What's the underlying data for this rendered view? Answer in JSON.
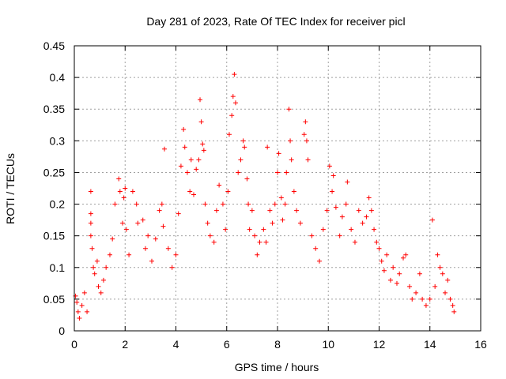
{
  "chart_data": {
    "type": "scatter",
    "title": "Day 281 of 2023, Rate Of TEC Index for receiver picl",
    "xlabel": "GPS time / hours",
    "ylabel": "ROTI / TECUs",
    "xlim": [
      0,
      16
    ],
    "ylim": [
      0,
      0.45
    ],
    "x_ticks": [
      "0",
      "2",
      "4",
      "6",
      "8",
      "10",
      "12",
      "14",
      "16"
    ],
    "y_ticks": [
      "0",
      "0.05",
      "0.1",
      "0.15",
      "0.2",
      "0.25",
      "0.3",
      "0.35",
      "0.4",
      "0.45"
    ],
    "grid": true,
    "marker": "plus",
    "series_color": "#ff0000",
    "points": [
      [
        0.05,
        0.055
      ],
      [
        0.1,
        0.045
      ],
      [
        0.15,
        0.03
      ],
      [
        0.2,
        0.02
      ],
      [
        0.3,
        0.04
      ],
      [
        0.4,
        0.06
      ],
      [
        0.5,
        0.03
      ],
      [
        0.65,
        0.22
      ],
      [
        0.65,
        0.185
      ],
      [
        0.65,
        0.17
      ],
      [
        0.65,
        0.15
      ],
      [
        0.7,
        0.13
      ],
      [
        0.75,
        0.1
      ],
      [
        0.8,
        0.09
      ],
      [
        0.9,
        0.11
      ],
      [
        0.95,
        0.07
      ],
      [
        1.05,
        0.06
      ],
      [
        1.15,
        0.08
      ],
      [
        1.25,
        0.1
      ],
      [
        1.4,
        0.12
      ],
      [
        1.5,
        0.145
      ],
      [
        1.6,
        0.2
      ],
      [
        1.75,
        0.24
      ],
      [
        1.8,
        0.22
      ],
      [
        1.9,
        0.17
      ],
      [
        1.95,
        0.21
      ],
      [
        2.0,
        0.225
      ],
      [
        2.05,
        0.16
      ],
      [
        2.15,
        0.12
      ],
      [
        2.3,
        0.22
      ],
      [
        2.45,
        0.2
      ],
      [
        2.5,
        0.17
      ],
      [
        2.7,
        0.175
      ],
      [
        2.8,
        0.13
      ],
      [
        2.9,
        0.15
      ],
      [
        3.05,
        0.11
      ],
      [
        3.2,
        0.145
      ],
      [
        3.35,
        0.19
      ],
      [
        3.45,
        0.2
      ],
      [
        3.5,
        0.165
      ],
      [
        3.55,
        0.287
      ],
      [
        3.7,
        0.13
      ],
      [
        3.85,
        0.1
      ],
      [
        4.0,
        0.12
      ],
      [
        4.1,
        0.185
      ],
      [
        4.2,
        0.26
      ],
      [
        4.3,
        0.318
      ],
      [
        4.35,
        0.29
      ],
      [
        4.45,
        0.25
      ],
      [
        4.55,
        0.22
      ],
      [
        4.6,
        0.27
      ],
      [
        4.7,
        0.215
      ],
      [
        4.8,
        0.255
      ],
      [
        4.9,
        0.27
      ],
      [
        4.95,
        0.365
      ],
      [
        5.0,
        0.33
      ],
      [
        5.05,
        0.295
      ],
      [
        5.1,
        0.285
      ],
      [
        5.15,
        0.2
      ],
      [
        5.25,
        0.17
      ],
      [
        5.35,
        0.15
      ],
      [
        5.5,
        0.14
      ],
      [
        5.6,
        0.19
      ],
      [
        5.7,
        0.23
      ],
      [
        5.85,
        0.2
      ],
      [
        5.95,
        0.16
      ],
      [
        6.05,
        0.22
      ],
      [
        6.1,
        0.31
      ],
      [
        6.2,
        0.34
      ],
      [
        6.25,
        0.37
      ],
      [
        6.3,
        0.405
      ],
      [
        6.35,
        0.36
      ],
      [
        6.45,
        0.25
      ],
      [
        6.55,
        0.27
      ],
      [
        6.65,
        0.3
      ],
      [
        6.7,
        0.29
      ],
      [
        6.8,
        0.24
      ],
      [
        6.85,
        0.2
      ],
      [
        6.9,
        0.16
      ],
      [
        7.0,
        0.19
      ],
      [
        7.1,
        0.15
      ],
      [
        7.2,
        0.12
      ],
      [
        7.3,
        0.14
      ],
      [
        7.45,
        0.16
      ],
      [
        7.55,
        0.14
      ],
      [
        7.6,
        0.29
      ],
      [
        7.7,
        0.19
      ],
      [
        7.8,
        0.17
      ],
      [
        7.9,
        0.2
      ],
      [
        8.0,
        0.25
      ],
      [
        8.05,
        0.28
      ],
      [
        8.15,
        0.21
      ],
      [
        8.2,
        0.175
      ],
      [
        8.3,
        0.2
      ],
      [
        8.35,
        0.25
      ],
      [
        8.45,
        0.35
      ],
      [
        8.5,
        0.3
      ],
      [
        8.55,
        0.27
      ],
      [
        8.65,
        0.22
      ],
      [
        8.75,
        0.19
      ],
      [
        8.9,
        0.17
      ],
      [
        9.05,
        0.31
      ],
      [
        9.1,
        0.33
      ],
      [
        9.15,
        0.3
      ],
      [
        9.2,
        0.27
      ],
      [
        9.35,
        0.15
      ],
      [
        9.5,
        0.13
      ],
      [
        9.65,
        0.11
      ],
      [
        9.8,
        0.16
      ],
      [
        9.95,
        0.19
      ],
      [
        10.05,
        0.26
      ],
      [
        10.15,
        0.22
      ],
      [
        10.2,
        0.245
      ],
      [
        10.3,
        0.195
      ],
      [
        10.45,
        0.15
      ],
      [
        10.55,
        0.18
      ],
      [
        10.7,
        0.2
      ],
      [
        10.75,
        0.235
      ],
      [
        10.9,
        0.16
      ],
      [
        11.05,
        0.14
      ],
      [
        11.2,
        0.19
      ],
      [
        11.35,
        0.17
      ],
      [
        11.5,
        0.18
      ],
      [
        11.6,
        0.21
      ],
      [
        11.7,
        0.19
      ],
      [
        11.8,
        0.16
      ],
      [
        11.9,
        0.14
      ],
      [
        12.0,
        0.13
      ],
      [
        12.1,
        0.11
      ],
      [
        12.2,
        0.095
      ],
      [
        12.3,
        0.12
      ],
      [
        12.45,
        0.08
      ],
      [
        12.55,
        0.1
      ],
      [
        12.7,
        0.075
      ],
      [
        12.8,
        0.09
      ],
      [
        12.95,
        0.115
      ],
      [
        13.05,
        0.12
      ],
      [
        13.2,
        0.07
      ],
      [
        13.3,
        0.05
      ],
      [
        13.45,
        0.06
      ],
      [
        13.6,
        0.09
      ],
      [
        13.7,
        0.05
      ],
      [
        13.85,
        0.04
      ],
      [
        14.0,
        0.05
      ],
      [
        14.1,
        0.175
      ],
      [
        14.2,
        0.07
      ],
      [
        14.3,
        0.12
      ],
      [
        14.4,
        0.1
      ],
      [
        14.5,
        0.09
      ],
      [
        14.6,
        0.06
      ],
      [
        14.7,
        0.08
      ],
      [
        14.8,
        0.05
      ],
      [
        14.9,
        0.04
      ],
      [
        14.95,
        0.03
      ]
    ]
  }
}
